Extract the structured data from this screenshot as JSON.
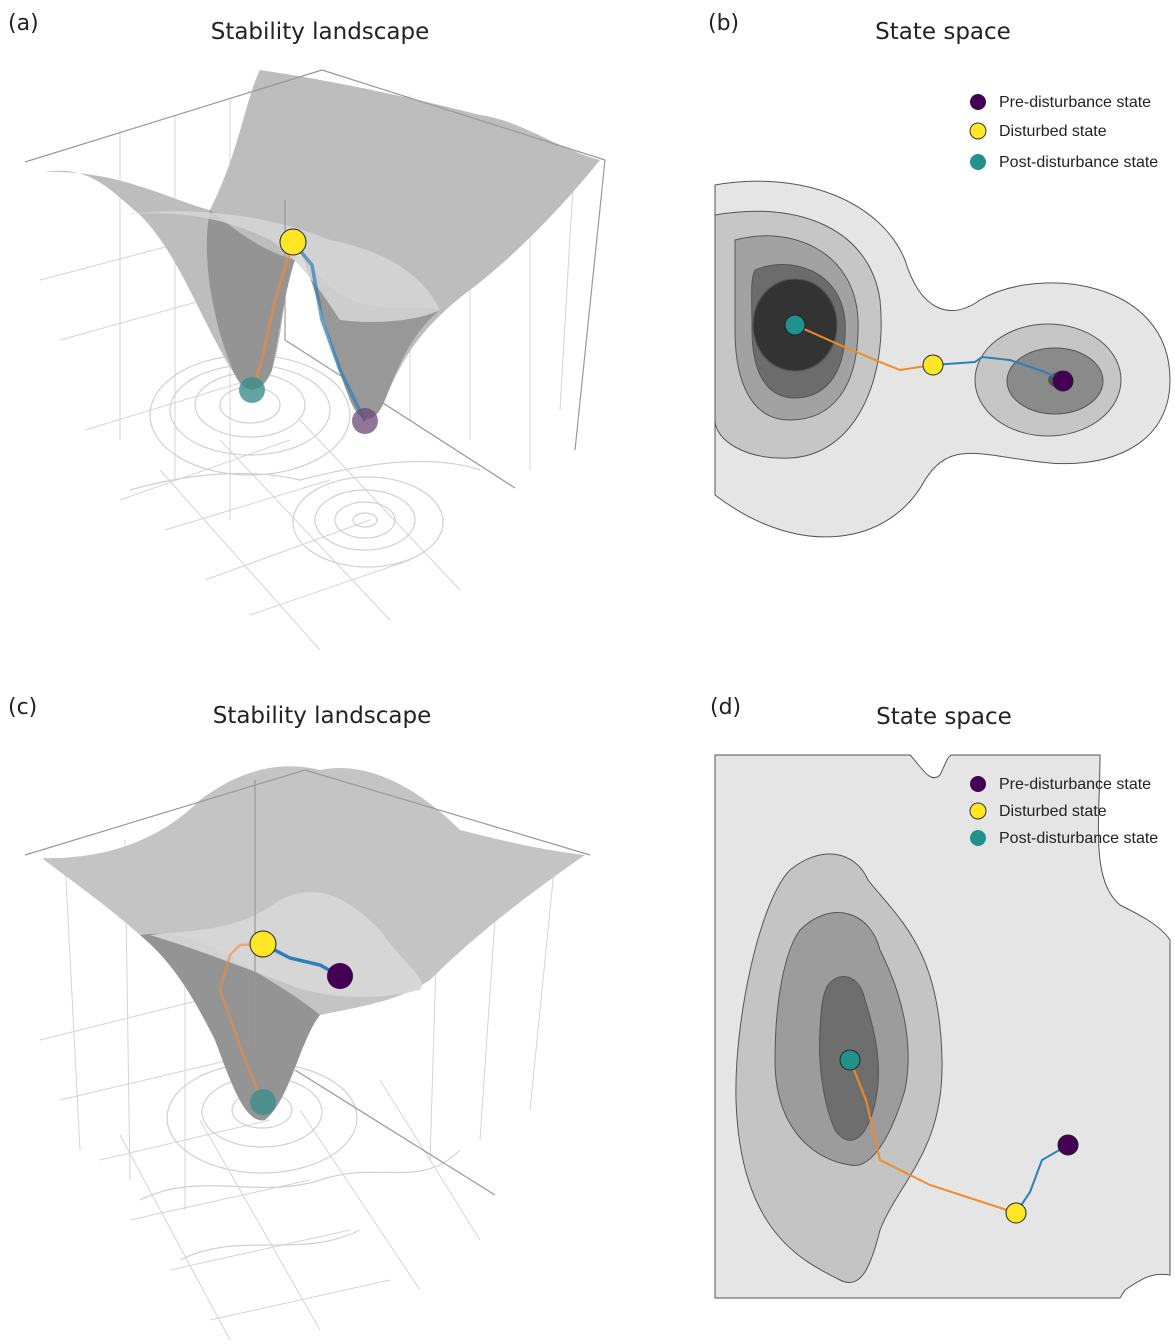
{
  "panels": [
    {
      "label": "(a)",
      "title": "Stability landscape"
    },
    {
      "label": "(b)",
      "title": "State space",
      "legend": [
        "Pre-disturbance state",
        "Disturbed state",
        "Post-disturbance state"
      ]
    },
    {
      "label": "(c)",
      "title": "Stability landscape"
    },
    {
      "label": "(d)",
      "title": "State space",
      "legend": [
        "Pre-disturbance state",
        "Disturbed state",
        "Post-disturbance state"
      ]
    }
  ]
}
